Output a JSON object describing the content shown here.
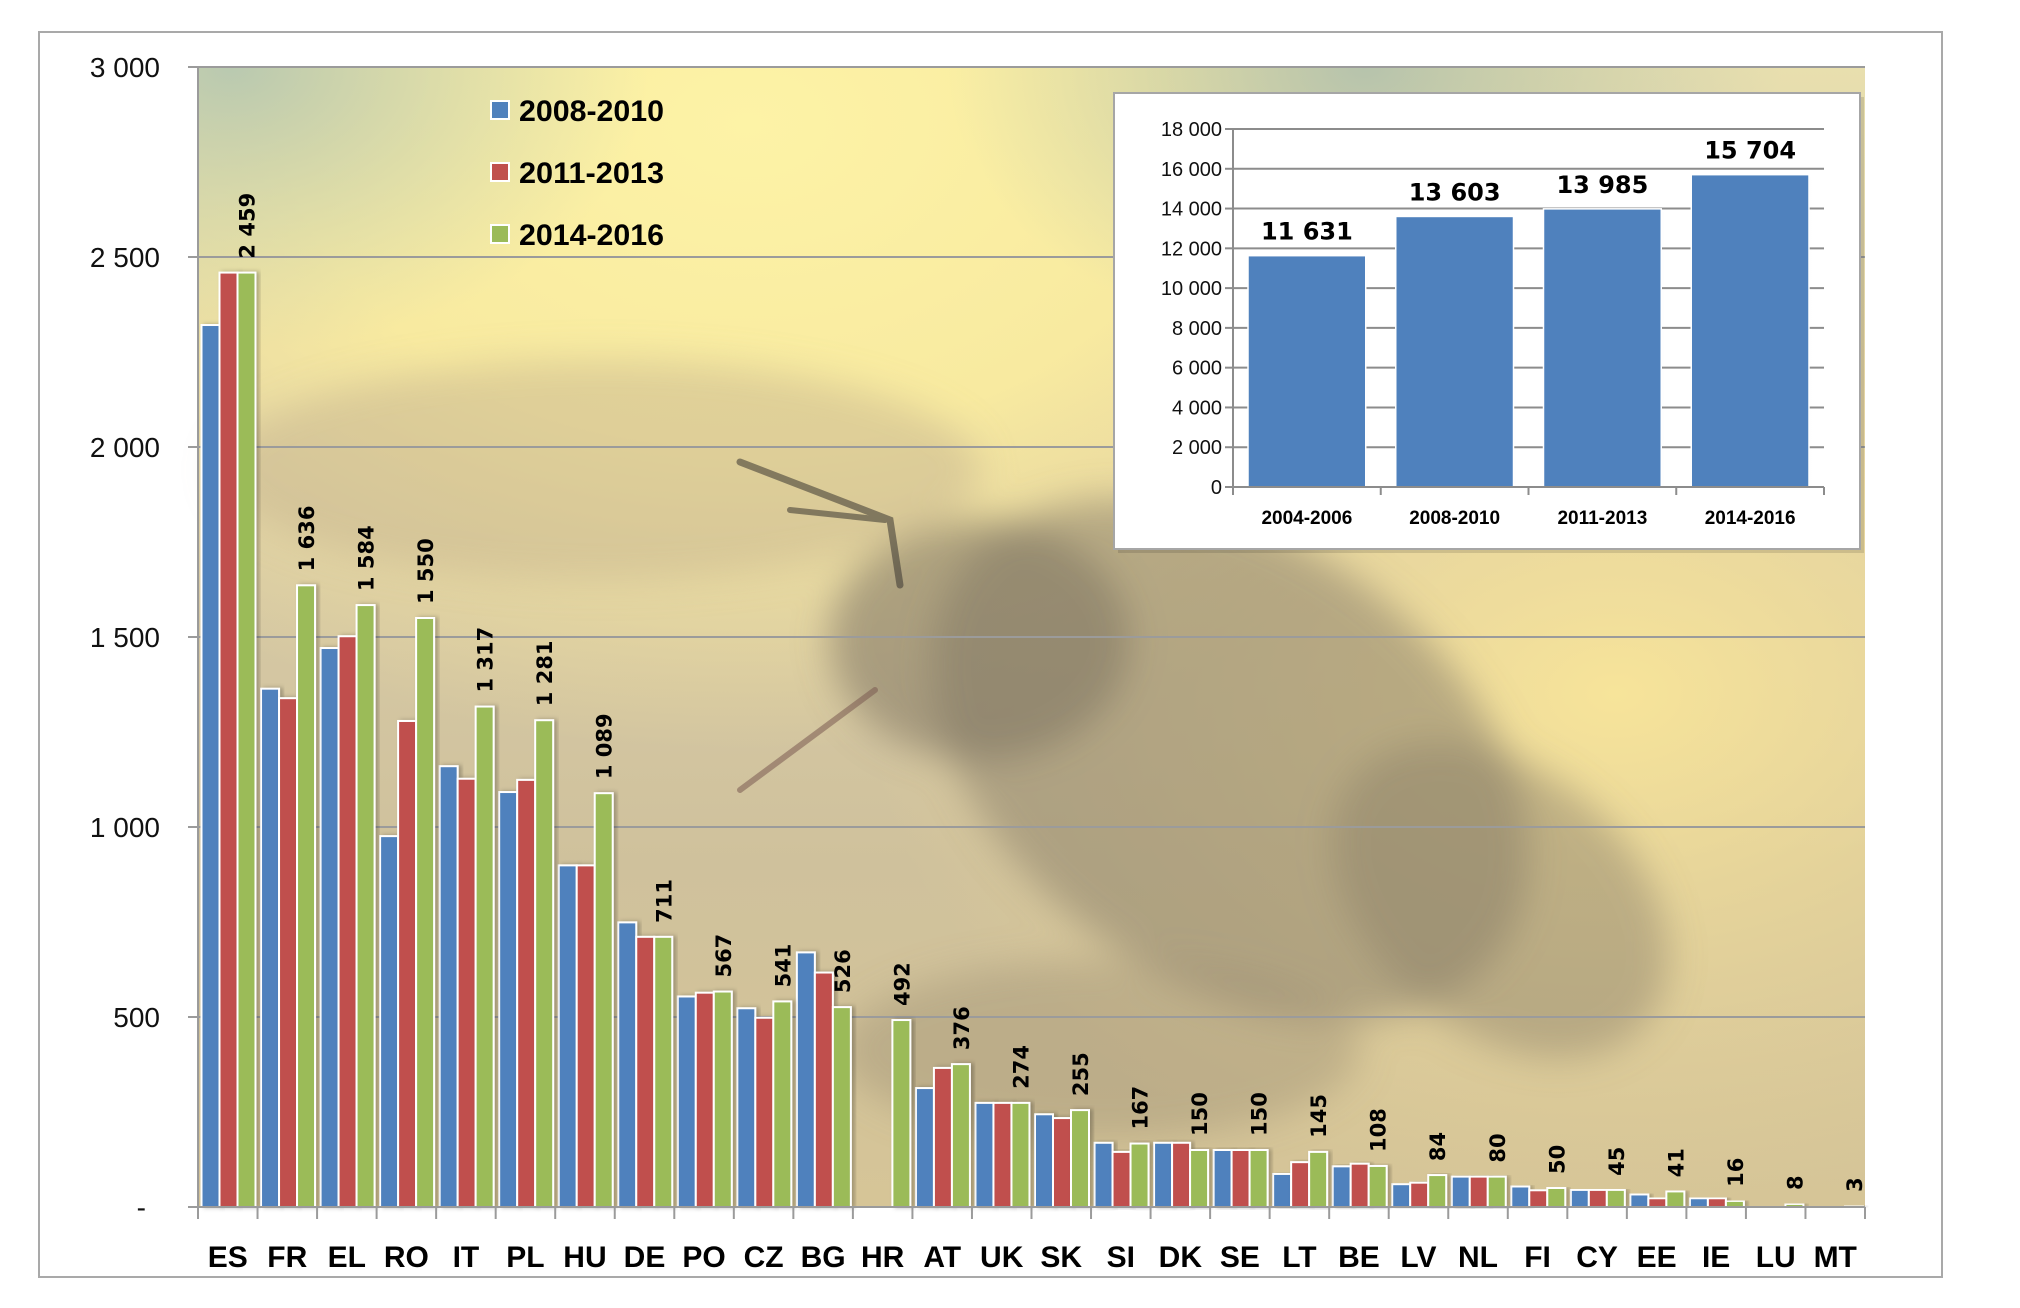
{
  "chart_data": [
    {
      "type": "bar",
      "title": "",
      "xlabel": "",
      "ylabel": "",
      "ylim": [
        0,
        3000
      ],
      "yticks": [
        0,
        500,
        1000,
        1500,
        2000,
        2500,
        3000
      ],
      "ytick_labels": [
        "-",
        "500",
        "1 000",
        "1 500",
        "2 000",
        "2 500",
        "3 000"
      ],
      "grid": true,
      "legend_position": "top-left",
      "categories": [
        "ES",
        "FR",
        "EL",
        "RO",
        "IT",
        "PL",
        "HU",
        "DE",
        "PO",
        "CZ",
        "BG",
        "HR",
        "AT",
        "UK",
        "SK",
        "SI",
        "DK",
        "SE",
        "LT",
        "BE",
        "LV",
        "NL",
        "FI",
        "CY",
        "EE",
        "IE",
        "LU",
        "MT"
      ],
      "series": [
        {
          "name": "2008-2010",
          "color": "#4f81bd",
          "values": [
            2321,
            1364,
            1471,
            976,
            1160,
            1092,
            899,
            749,
            554,
            523,
            670,
            0,
            313,
            274,
            244,
            169,
            169,
            150,
            87,
            107,
            60,
            80,
            54,
            45,
            33,
            23,
            0,
            0
          ]
        },
        {
          "name": "2011-2013",
          "color": "#c0504d",
          "values": [
            2459,
            1339,
            1502,
            1279,
            1127,
            1124,
            899,
            711,
            564,
            498,
            617,
            0,
            366,
            274,
            234,
            145,
            169,
            150,
            118,
            114,
            64,
            80,
            44,
            45,
            23,
            23,
            0,
            0
          ]
        },
        {
          "name": "2014-2016",
          "color": "#9bbb59",
          "values": [
            2459,
            1636,
            1584,
            1550,
            1317,
            1281,
            1089,
            711,
            567,
            541,
            526,
            492,
            376,
            274,
            255,
            167,
            150,
            150,
            145,
            108,
            84,
            80,
            50,
            45,
            41,
            16,
            8,
            3
          ],
          "data_labels": [
            "2 459",
            "1 636",
            "1 584",
            "1 550",
            "1 317",
            "1 281",
            "1 089",
            "711",
            "567",
            "541",
            "526",
            "492",
            "376",
            "274",
            "255",
            "167",
            "150",
            "150",
            "145",
            "108",
            "84",
            "80",
            "50",
            "45",
            "41",
            "16",
            "8",
            "3"
          ]
        }
      ]
    },
    {
      "type": "bar",
      "title": "",
      "legend_position": "none",
      "ylim": [
        0,
        18000
      ],
      "yticks": [
        0,
        2000,
        4000,
        6000,
        8000,
        10000,
        12000,
        14000,
        16000,
        18000
      ],
      "ytick_labels": [
        "0",
        "2 000",
        "4 000",
        "6 000",
        "8 000",
        "10 000",
        "12 000",
        "14 000",
        "16 000",
        "18 000"
      ],
      "grid": true,
      "categories": [
        "2004-2006",
        "2008-2010",
        "2011-2013",
        "2014-2016"
      ],
      "values": [
        11631,
        13603,
        13985,
        15704
      ],
      "data_labels": [
        "11 631",
        "13 603",
        "13 985",
        "15 704"
      ],
      "color": "#4f81bd"
    }
  ]
}
